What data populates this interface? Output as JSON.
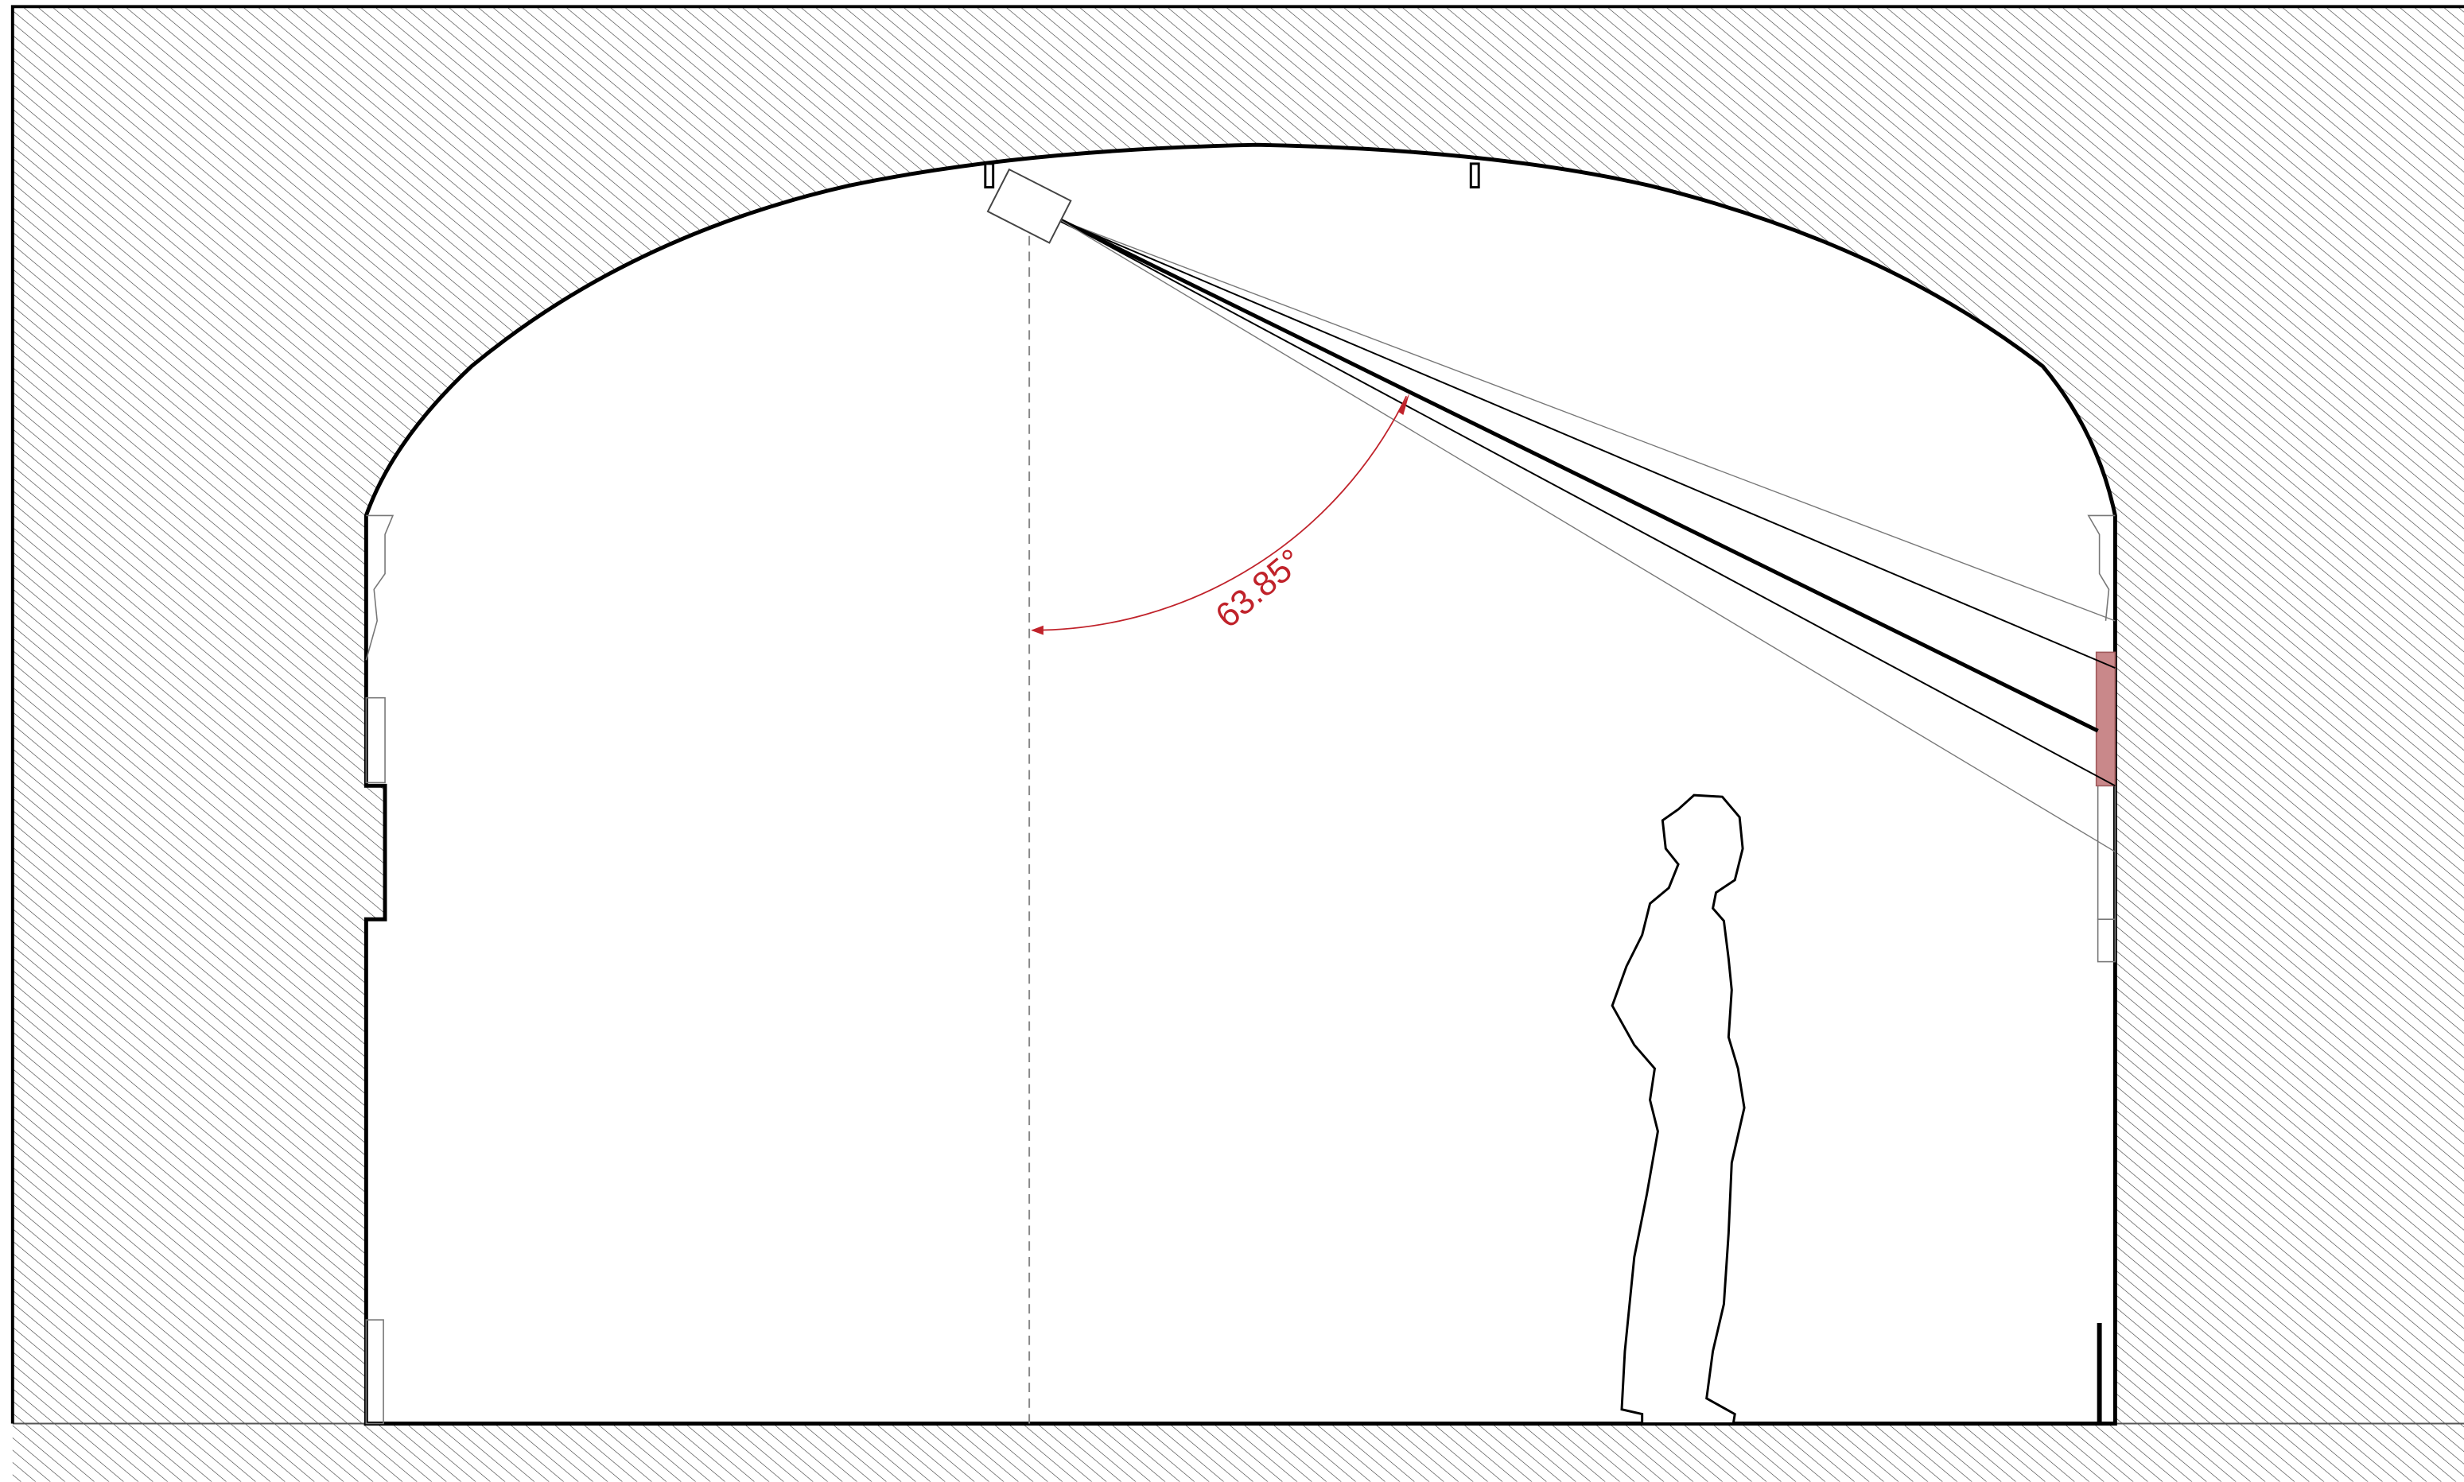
{
  "annotation": {
    "angle_label": "63.85°"
  }
}
